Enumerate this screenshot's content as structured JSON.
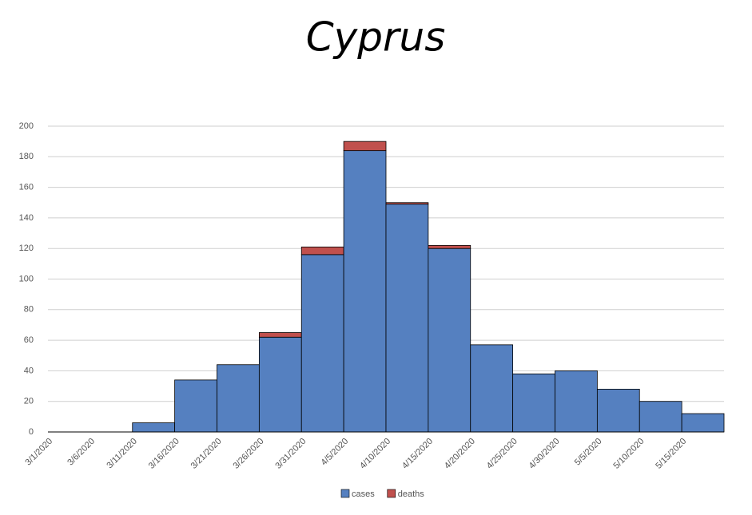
{
  "chart_data": {
    "type": "stacked-bar",
    "title": "Cyprus",
    "categories": [
      "3/1/2020",
      "3/6/2020",
      "3/11/2020",
      "3/16/2020",
      "3/21/2020",
      "3/26/2020",
      "3/31/2020",
      "4/5/2020",
      "4/10/2020",
      "4/15/2020",
      "4/20/2020",
      "4/25/2020",
      "4/30/2020",
      "5/5/2020",
      "5/10/2020",
      "5/15/2020"
    ],
    "series": [
      {
        "name": "cases",
        "color": "#5580c0",
        "values": [
          0,
          0,
          6,
          34,
          44,
          62,
          116,
          184,
          149,
          120,
          57,
          38,
          40,
          28,
          20,
          12
        ]
      },
      {
        "name": "deaths",
        "color": "#c0504d",
        "values": [
          0,
          0,
          0,
          0,
          0,
          3,
          5,
          6,
          1,
          2,
          0,
          0,
          0,
          0,
          0,
          0
        ]
      }
    ],
    "ylim": [
      0,
      200
    ],
    "yticks": [
      0,
      20,
      40,
      60,
      80,
      100,
      120,
      140,
      160,
      180,
      200
    ],
    "grid": true,
    "legend": "bottom"
  }
}
